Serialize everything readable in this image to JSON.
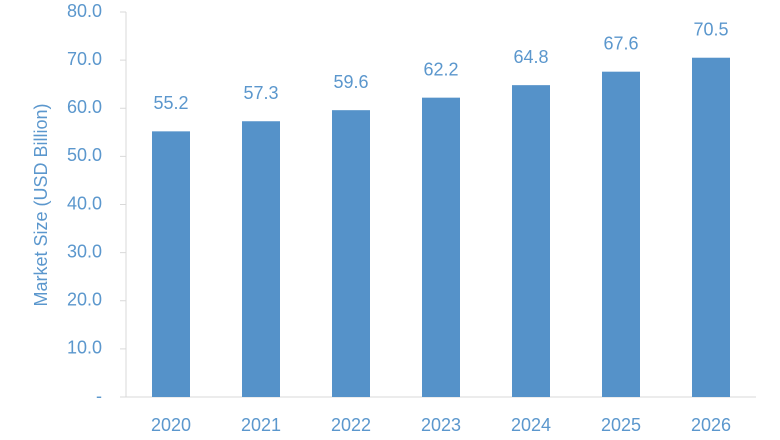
{
  "chart_data": {
    "type": "bar",
    "categories": [
      "2020",
      "2021",
      "2022",
      "2023",
      "2024",
      "2025",
      "2026"
    ],
    "values": [
      55.2,
      57.3,
      59.6,
      62.2,
      64.8,
      67.6,
      70.5
    ],
    "data_labels": [
      "55.2",
      "57.3",
      "59.6",
      "62.2",
      "64.8",
      "67.6",
      "70.5"
    ],
    "title": "",
    "xlabel": "",
    "ylabel": "Market Size (USD Billion)",
    "ylim": [
      0,
      80
    ],
    "y_ticks": [
      0,
      10,
      20,
      30,
      40,
      50,
      60,
      70,
      80
    ],
    "y_tick_labels": [
      "-",
      "10.0",
      "20.0",
      "30.0",
      "40.0",
      "50.0",
      "60.0",
      "70.0",
      "80.0"
    ],
    "grid": false,
    "legend": "none",
    "colors": {
      "bar": "#5592c9",
      "text": "#5b97cd",
      "axis": "#d9d9d9"
    }
  }
}
